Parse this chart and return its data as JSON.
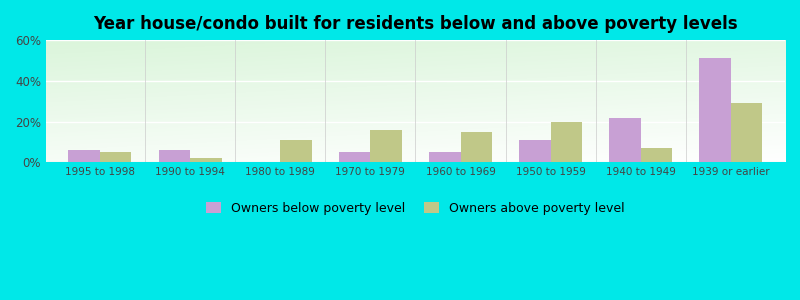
{
  "title": "Year house/condo built for residents below and above poverty levels",
  "categories": [
    "1995 to 1998",
    "1990 to 1994",
    "1980 to 1989",
    "1970 to 1979",
    "1960 to 1969",
    "1950 to 1959",
    "1940 to 1949",
    "1939 or earlier"
  ],
  "below_poverty": [
    6,
    6,
    0,
    5,
    5,
    11,
    22,
    51
  ],
  "above_poverty": [
    5,
    2,
    11,
    16,
    15,
    20,
    7,
    29
  ],
  "below_color": "#c8a0d4",
  "above_color": "#c0c888",
  "ylim": [
    0,
    60
  ],
  "yticks": [
    0,
    20,
    40,
    60
  ],
  "ytick_labels": [
    "0%",
    "20%",
    "40%",
    "60%"
  ],
  "bg_top_left": "#c8f0d8",
  "bg_bottom_right": "#f0fff4",
  "outer_bg": "#00e8e8",
  "bar_width": 0.35,
  "legend_below_label": "Owners below poverty level",
  "legend_above_label": "Owners above poverty level",
  "grid_color": "#e8ffe8",
  "title_fontsize": 12
}
